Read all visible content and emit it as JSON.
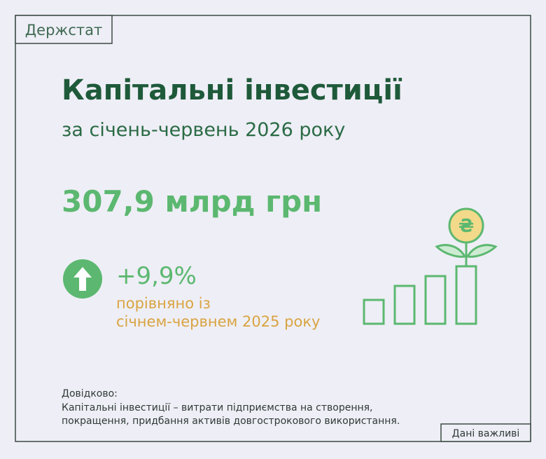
{
  "header": {
    "logo": "Держстат"
  },
  "title": "Капітальні інвестиції",
  "subtitle": "за січень-червень 2026 року",
  "amount": "307,9 млрд грн",
  "change": {
    "value": "+9,9%",
    "comparison": [
      "порівняно із",
      "січнем-червнем 2025 року"
    ]
  },
  "icon": {
    "coin_symbol": "₴"
  },
  "note": {
    "title": "Довідково:",
    "lines": [
      "Капітальні інвестиції – витрати підприємства на створення,",
      "покращення, придбання активів довгострокового використання."
    ]
  },
  "footer": "Дані важливі"
}
